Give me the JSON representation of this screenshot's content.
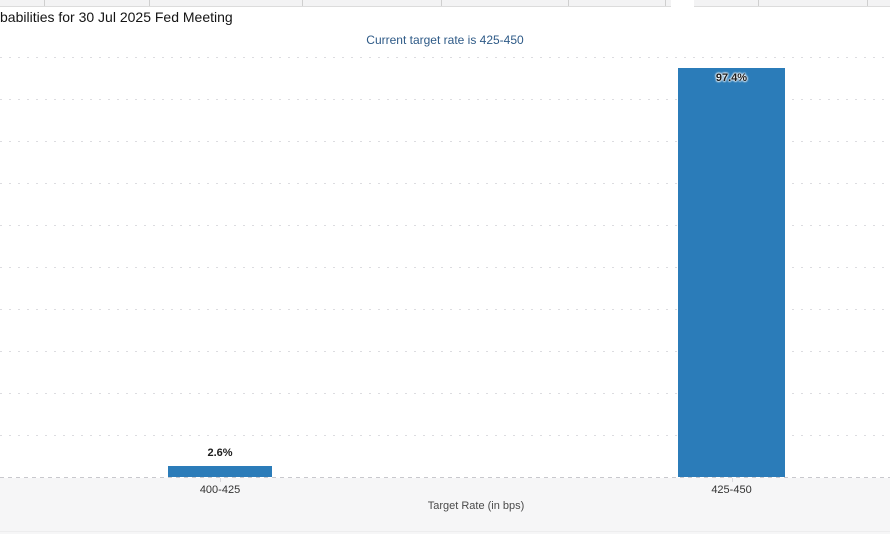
{
  "header": {
    "title": "babilities for 30 Jul 2025 Fed Meeting",
    "subtitle": "Current target rate is 425-450"
  },
  "colors": {
    "bar": "#2b7cb9",
    "subtitle_text": "#2e5a87",
    "gridline": "#dcdce0",
    "axis_line": "#c8c8cd"
  },
  "chart_data": {
    "type": "bar",
    "title": "babilities for 30 Jul 2025 Fed Meeting",
    "subtitle": "Current target rate is 425-450",
    "categories": [
      "400-425",
      "425-450"
    ],
    "values": [
      2.6,
      97.4
    ],
    "data_labels": [
      "2.6%",
      "97.4%"
    ],
    "xlabel": "Target Rate (in bps)",
    "ylabel": "",
    "ylim": [
      0,
      100
    ],
    "grid": "horizontal dotted lines every 10%, no visible y-axis labels",
    "legend": "none",
    "bar_color": "#2b7cb9"
  }
}
